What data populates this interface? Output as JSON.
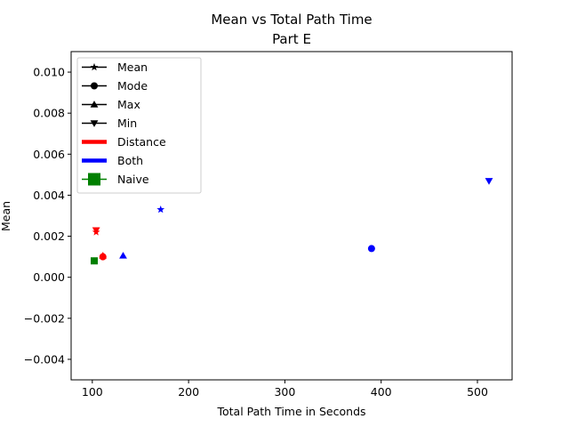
{
  "chart_data": {
    "type": "scatter",
    "title": "Mean vs Total Path Time",
    "subtitle": "Part E",
    "xlabel": "Total Path Time in Seconds",
    "ylabel": "Mean",
    "xlim": [
      78,
      536
    ],
    "ylim": [
      -0.005,
      0.011
    ],
    "xticks": [
      100,
      200,
      300,
      400,
      500
    ],
    "xtick_labels": [
      "100",
      "200",
      "300",
      "400",
      "500"
    ],
    "yticks": [
      -0.004,
      -0.002,
      0.0,
      0.002,
      0.004,
      0.006,
      0.008,
      0.01
    ],
    "ytick_labels": [
      "−0.004",
      "−0.002",
      "0.000",
      "0.002",
      "0.004",
      "0.006",
      "0.008",
      "0.010"
    ],
    "grid": false,
    "legend": {
      "placement": "top-left",
      "entries": [
        {
          "label": "Mean",
          "kind": "marker",
          "marker": "star",
          "color": "#000000"
        },
        {
          "label": "Mode",
          "kind": "marker",
          "marker": "circle",
          "color": "#000000"
        },
        {
          "label": "Max",
          "kind": "marker",
          "marker": "triangle-up",
          "color": "#000000"
        },
        {
          "label": "Min",
          "kind": "marker",
          "marker": "triangle-down",
          "color": "#000000"
        },
        {
          "label": "Distance",
          "kind": "line",
          "color": "#ff0000"
        },
        {
          "label": "Both",
          "kind": "line",
          "color": "#0000ff"
        },
        {
          "label": "Naive",
          "kind": "marker-large",
          "marker": "square",
          "color": "#008000"
        }
      ]
    },
    "points": [
      {
        "x": 104,
        "y": 0.0023,
        "marker": "triangle-down",
        "color": "#ff0000"
      },
      {
        "x": 104,
        "y": 0.0022,
        "marker": "star",
        "color": "#ff0000"
      },
      {
        "x": 111,
        "y": 0.00105,
        "marker": "triangle-up",
        "color": "#ff0000"
      },
      {
        "x": 111,
        "y": 0.001,
        "marker": "circle",
        "color": "#ff0000"
      },
      {
        "x": 102,
        "y": 0.0008,
        "marker": "square",
        "color": "#008000"
      },
      {
        "x": 132,
        "y": 0.00105,
        "marker": "triangle-up",
        "color": "#0000ff"
      },
      {
        "x": 171,
        "y": 0.0033,
        "marker": "star",
        "color": "#0000ff"
      },
      {
        "x": 390,
        "y": 0.0014,
        "marker": "circle",
        "color": "#0000ff"
      },
      {
        "x": 512,
        "y": 0.0047,
        "marker": "triangle-down",
        "color": "#0000ff"
      }
    ]
  }
}
